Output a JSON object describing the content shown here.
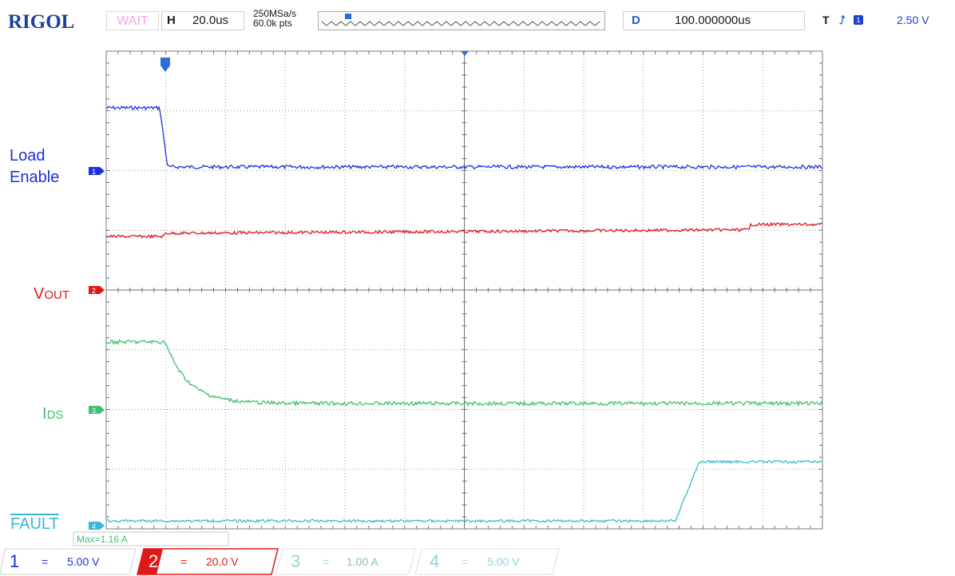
{
  "header": {
    "brand": "RIGOL",
    "status": "WAIT",
    "horizontal_key": "H",
    "timebase": "20.0us",
    "sample_rate": "250MSa/s",
    "memory_depth": "60.0k pts",
    "delay_key": "D",
    "delay": "100.000000us",
    "trigger_key": "T",
    "trigger_edge": "rising-edge-icon",
    "trigger_source": "1",
    "trigger_level": "2.50 V"
  },
  "labels": {
    "ch1": "Load\nEnable",
    "ch1_line1": "Load",
    "ch1_line2": "Enable",
    "ch2": "VOUT",
    "ch2_main": "V",
    "ch2_sub": "OUT",
    "ch3": "IDS",
    "ch3_main": "I",
    "ch3_sub": "DS",
    "ch4": "FAULT",
    "marker1": "1",
    "marker2": "2",
    "marker3": "3",
    "marker4": "4",
    "measurement": "Max=1.16 A"
  },
  "channels": [
    {
      "number": "1",
      "coupling": "=",
      "scale": "5.00 V",
      "color": "#1c2fdc"
    },
    {
      "number": "2",
      "coupling": "=",
      "scale": "20.0 V",
      "color": "#e01818"
    },
    {
      "number": "3",
      "coupling": "=",
      "scale": "1.00 A",
      "color": "#3fbf73"
    },
    {
      "number": "4",
      "coupling": "=",
      "scale": "5.00 V",
      "color": "#38b9cf"
    }
  ],
  "colors": {
    "ch1": "#1c2fdc",
    "ch2": "#e01818",
    "ch3": "#3fbf73",
    "ch4": "#38b9cf",
    "brand": "#1e3f9a",
    "grid": "#9a9a9a"
  }
}
